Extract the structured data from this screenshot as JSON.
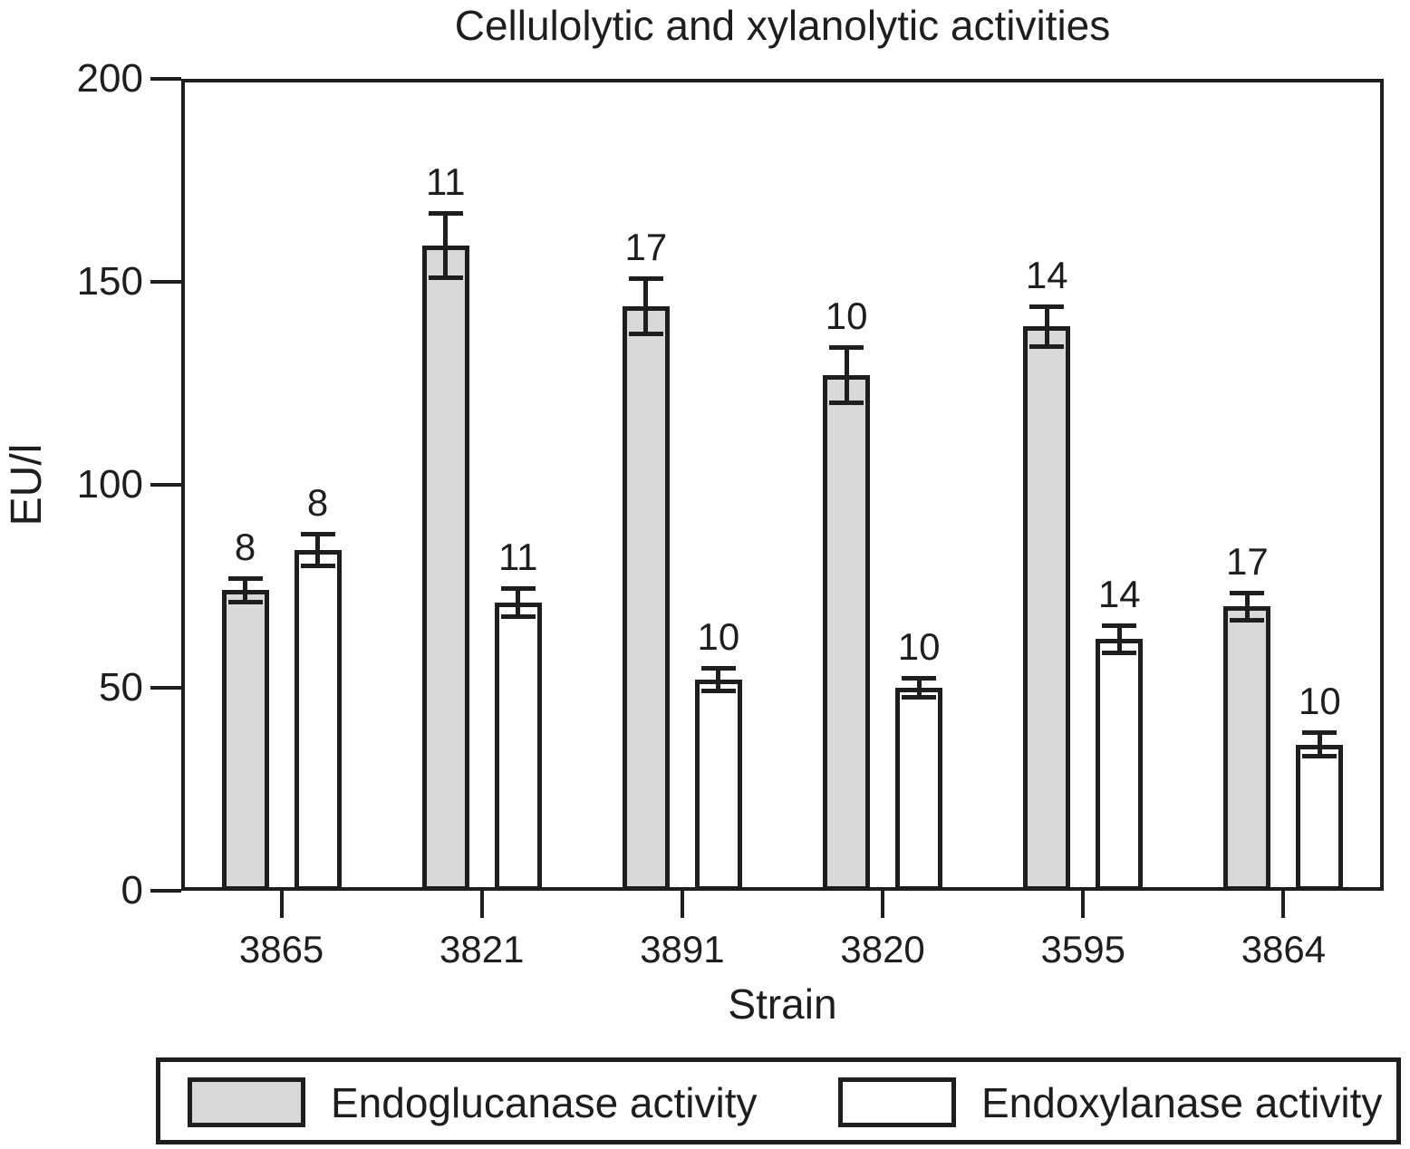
{
  "chart_data": {
    "type": "bar",
    "title": "Cellulolytic and xylanolytic activities",
    "xlabel": "Strain",
    "ylabel": "EU/l",
    "ylim": [
      0,
      200
    ],
    "yticks": [
      0,
      50,
      100,
      150,
      200
    ],
    "grid": false,
    "legend_position": "bottom",
    "categories": [
      "3865",
      "3821",
      "3891",
      "3820",
      "3595",
      "3864"
    ],
    "series": [
      {
        "name": "Endoglucanase activity",
        "fill": "#d8d8d8",
        "values": [
          74,
          159,
          144,
          127,
          139,
          70
        ],
        "errors": [
          3,
          8,
          7,
          7,
          5,
          3.5
        ],
        "bar_labels": [
          "8",
          "11",
          "17",
          "10",
          "14",
          "17"
        ]
      },
      {
        "name": "Endoxylanase activity",
        "fill": "#ffffff",
        "values": [
          84,
          71,
          52,
          50,
          62,
          36
        ],
        "errors": [
          4,
          3.5,
          3,
          2.5,
          3.5,
          3
        ],
        "bar_labels": [
          "8",
          "11",
          "10",
          "10",
          "14",
          "10"
        ]
      }
    ],
    "colors": {
      "line": "#1e1e1e",
      "gray_fill": "#d8d8d8",
      "white_fill": "#ffffff"
    }
  }
}
